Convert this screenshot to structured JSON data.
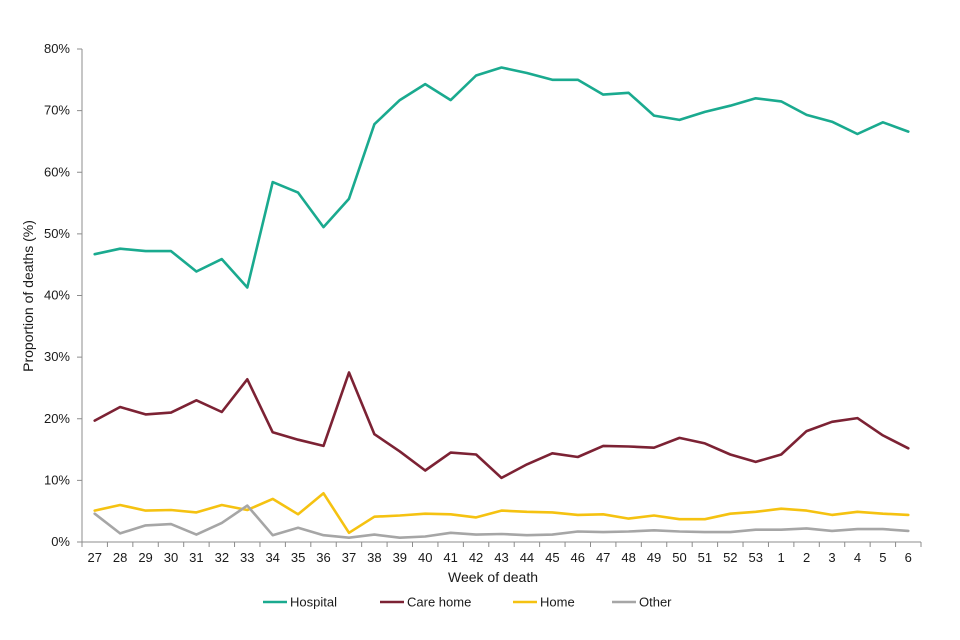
{
  "chart_data": {
    "type": "line",
    "title": "",
    "xlabel": "Week of death",
    "ylabel": "Proportion of deaths (%)",
    "ylim": [
      0,
      80
    ],
    "yticks": [
      0,
      10,
      20,
      30,
      40,
      50,
      60,
      70,
      80
    ],
    "ytick_labels": [
      "0%",
      "10%",
      "20%",
      "30%",
      "40%",
      "50%",
      "60%",
      "70%",
      "80%"
    ],
    "grid": false,
    "legend_position": "bottom",
    "categories": [
      "27",
      "28",
      "29",
      "30",
      "31",
      "32",
      "33",
      "34",
      "35",
      "36",
      "37",
      "38",
      "39",
      "40",
      "41",
      "42",
      "43",
      "44",
      "45",
      "46",
      "47",
      "48",
      "49",
      "50",
      "51",
      "52",
      "53",
      "1",
      "2",
      "3",
      "4",
      "5",
      "6"
    ],
    "series": [
      {
        "name": "Hospital",
        "color": "#1aaa8f",
        "values": [
          46.7,
          47.6,
          47.2,
          47.2,
          43.9,
          45.9,
          41.3,
          58.4,
          56.7,
          51.1,
          55.7,
          67.8,
          71.7,
          74.3,
          71.7,
          75.7,
          77.0,
          76.1,
          75.0,
          75.0,
          72.6,
          72.9,
          69.2,
          68.5,
          69.8,
          70.8,
          72.0,
          71.5,
          69.3,
          68.2,
          66.2,
          68.1,
          66.6
        ]
      },
      {
        "name": "Care home",
        "color": "#7c2234",
        "values": [
          19.7,
          21.9,
          20.7,
          21.0,
          23.0,
          21.1,
          26.4,
          17.8,
          16.6,
          15.6,
          27.5,
          17.5,
          14.7,
          11.6,
          14.5,
          14.2,
          10.4,
          12.6,
          14.4,
          13.8,
          15.6,
          15.5,
          15.3,
          16.9,
          16.0,
          14.2,
          13.0,
          14.2,
          18.0,
          19.5,
          20.1,
          17.3,
          15.2
        ]
      },
      {
        "name": "Home",
        "color": "#f5c211",
        "values": [
          5.1,
          6.0,
          5.1,
          5.2,
          4.8,
          6.0,
          5.2,
          7.0,
          4.5,
          7.9,
          1.5,
          4.1,
          4.3,
          4.6,
          4.5,
          4.0,
          5.1,
          4.9,
          4.8,
          4.4,
          4.5,
          3.8,
          4.3,
          3.7,
          3.7,
          4.6,
          4.9,
          5.4,
          5.1,
          4.4,
          4.9,
          4.6,
          4.4
        ]
      },
      {
        "name": "Other",
        "color": "#a6a6a6",
        "values": [
          4.6,
          1.4,
          2.7,
          2.9,
          1.2,
          3.1,
          5.9,
          1.1,
          2.3,
          1.1,
          0.7,
          1.2,
          0.7,
          0.9,
          1.5,
          1.2,
          1.3,
          1.1,
          1.2,
          1.7,
          1.6,
          1.7,
          1.9,
          1.7,
          1.6,
          1.6,
          2.0,
          2.0,
          2.2,
          1.8,
          2.1,
          2.1,
          1.8
        ]
      }
    ]
  }
}
